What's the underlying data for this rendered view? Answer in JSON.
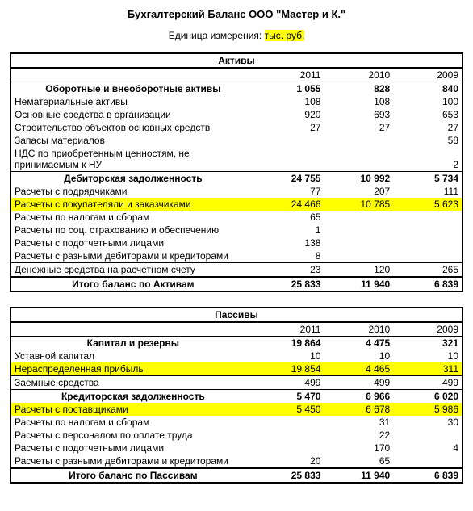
{
  "title": "Бухгалтерский Баланс ООО \"Мастер и К.\"",
  "unit_prefix": "Единица измерения: ",
  "unit_value": "тыс. руб.",
  "years": [
    "2011",
    "2010",
    "2009"
  ],
  "assets": {
    "header": "Активы",
    "group1": {
      "label": "Оборотные и внеоборотные активы",
      "vals": [
        "1 055",
        "828",
        "840"
      ],
      "rows": [
        {
          "label": "Нематериальные активы",
          "vals": [
            "108",
            "108",
            "100"
          ]
        },
        {
          "label": "Основные средства в организации",
          "vals": [
            "920",
            "693",
            "653"
          ]
        },
        {
          "label": "Строительство объектов основных средств",
          "vals": [
            "27",
            "27",
            "27"
          ]
        },
        {
          "label": "Запасы материалов",
          "vals": [
            "",
            "",
            "58"
          ]
        },
        {
          "label": "НДС по приобретенным ценностям, не принимаемым к НУ",
          "vals": [
            "",
            "",
            "2"
          ]
        }
      ]
    },
    "group2": {
      "label": "Дебиторская задолженность",
      "vals": [
        "24 755",
        "10 992",
        "5 734"
      ],
      "rows": [
        {
          "label": "Расчеты с подрядчиками",
          "vals": [
            "77",
            "207",
            "111"
          ]
        },
        {
          "label": "Расчеты с покупателяли и заказчиками",
          "vals": [
            "24 466",
            "10 785",
            "5 623"
          ],
          "hl": true
        },
        {
          "label": "Расчеты по налогам и сборам",
          "vals": [
            "65",
            "",
            ""
          ]
        },
        {
          "label": "Расчеты по соц. страхованию и обеспечению",
          "vals": [
            "1",
            "",
            ""
          ]
        },
        {
          "label": "Расчеты с подотчетными лицами",
          "vals": [
            "138",
            "",
            ""
          ]
        },
        {
          "label": "Расчеты с разными дебиторами и кредиторами",
          "vals": [
            "8",
            "",
            ""
          ]
        }
      ]
    },
    "cash": {
      "label": "Денежные средства на расчетном счету",
      "vals": [
        "23",
        "120",
        "265"
      ]
    },
    "total": {
      "label": "Итого баланс по Активам",
      "vals": [
        "25 833",
        "11 940",
        "6 839"
      ]
    }
  },
  "liab": {
    "header": "Пассивы",
    "group1": {
      "label": "Капитал и резервы",
      "vals": [
        "19 864",
        "4 475",
        "321"
      ],
      "rows": [
        {
          "label": "Уставной капитал",
          "vals": [
            "10",
            "10",
            "10"
          ]
        },
        {
          "label": "Нераспределенная прибыль",
          "vals": [
            "19 854",
            "4 465",
            "311"
          ],
          "hl": true
        }
      ]
    },
    "loan": {
      "label": "Заемные средства",
      "vals": [
        "499",
        "499",
        "499"
      ]
    },
    "group2": {
      "label": "Кредиторская задолженность",
      "vals": [
        "5 470",
        "6 966",
        "6 020"
      ],
      "rows": [
        {
          "label": "Расчеты с поставщиками",
          "vals": [
            "5 450",
            "6 678",
            "5 986"
          ],
          "hl": true
        },
        {
          "label": "Расчеты по налогам и сборам",
          "vals": [
            "",
            "31",
            "30"
          ]
        },
        {
          "label": "Расчеты с персоналом по оплате труда",
          "vals": [
            "",
            "22",
            ""
          ]
        },
        {
          "label": "Расчеты с подотчетными лицами",
          "vals": [
            "",
            "170",
            "4"
          ]
        },
        {
          "label": "Расчеты с разными дебиторами и кредиторами",
          "vals": [
            "20",
            "65",
            ""
          ]
        }
      ]
    },
    "total": {
      "label": "Итого баланс по Пассивам",
      "vals": [
        "25 833",
        "11 940",
        "6 839"
      ]
    }
  }
}
